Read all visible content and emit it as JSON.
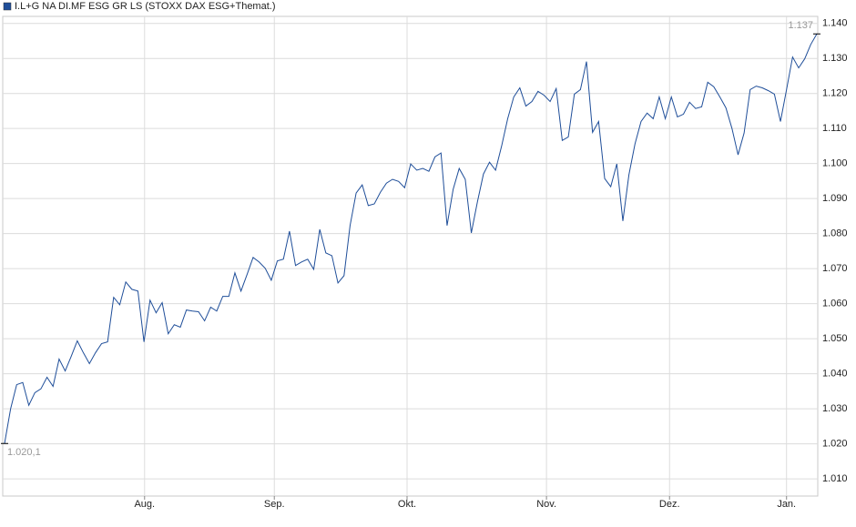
{
  "chart_data": {
    "type": "line",
    "legend": "I.L+G NA DI.MF ESG GR LS (STOXX DAX ESG+Themat.)",
    "color": "#1f4e99",
    "first_label": "1.020,1",
    "last_label": "1.137",
    "xlim": [
      0,
      134
    ],
    "xticks": [
      {
        "value": 23.1,
        "label": "Aug."
      },
      {
        "value": 44.5,
        "label": "Sep."
      },
      {
        "value": 66.4,
        "label": "Okt."
      },
      {
        "value": 89.4,
        "label": "Nov."
      },
      {
        "value": 109.7,
        "label": "Dez."
      },
      {
        "value": 129.0,
        "label": "Jan."
      }
    ],
    "ylim": [
      1005.1,
      1142.0
    ],
    "yticks": [
      {
        "value": 1010,
        "label": "1.010"
      },
      {
        "value": 1020,
        "label": "1.020"
      },
      {
        "value": 1030,
        "label": "1.030"
      },
      {
        "value": 1040,
        "label": "1.040"
      },
      {
        "value": 1050,
        "label": "1.050"
      },
      {
        "value": 1060,
        "label": "1.060"
      },
      {
        "value": 1070,
        "label": "1.070"
      },
      {
        "value": 1080,
        "label": "1.080"
      },
      {
        "value": 1090,
        "label": "1.090"
      },
      {
        "value": 1100,
        "label": "1.100"
      },
      {
        "value": 1110,
        "label": "1.110"
      },
      {
        "value": 1120,
        "label": "1.120"
      },
      {
        "value": 1130,
        "label": "1.130"
      },
      {
        "value": 1140,
        "label": "1.140"
      }
    ],
    "grid": true,
    "values": [
      1020.1,
      1030.0,
      1036.9,
      1037.5,
      1031.0,
      1034.6,
      1035.7,
      1039.0,
      1036.4,
      1044.2,
      1040.8,
      1045.0,
      1049.4,
      1046.0,
      1042.9,
      1046.0,
      1048.6,
      1049.1,
      1061.8,
      1059.7,
      1066.2,
      1064.1,
      1063.6,
      1049.1,
      1061.0,
      1057.4,
      1060.3,
      1051.4,
      1054.0,
      1053.3,
      1058.2,
      1057.9,
      1057.7,
      1055.1,
      1059.0,
      1057.9,
      1062.1,
      1062.1,
      1068.8,
      1063.6,
      1068.3,
      1073.2,
      1071.9,
      1070.1,
      1066.7,
      1072.2,
      1072.7,
      1080.7,
      1070.9,
      1071.9,
      1072.7,
      1069.8,
      1081.2,
      1074.5,
      1073.7,
      1065.9,
      1068.0,
      1082.3,
      1091.6,
      1093.9,
      1088.0,
      1088.5,
      1091.8,
      1094.4,
      1095.5,
      1094.9,
      1093.1,
      1099.9,
      1098.1,
      1098.6,
      1097.8,
      1101.9,
      1103.0,
      1082.3,
      1092.6,
      1098.6,
      1095.5,
      1080.2,
      1089.0,
      1097.0,
      1100.4,
      1098.1,
      1105.0,
      1112.8,
      1119.0,
      1121.6,
      1116.4,
      1117.7,
      1120.6,
      1119.5,
      1117.7,
      1121.4,
      1106.6,
      1107.6,
      1119.8,
      1121.1,
      1129.1,
      1108.9,
      1112.0,
      1095.7,
      1093.4,
      1099.9,
      1083.6,
      1096.8,
      1105.6,
      1112.0,
      1114.4,
      1112.8,
      1119.0,
      1112.8,
      1119.0,
      1113.3,
      1114.1,
      1117.5,
      1115.7,
      1116.2,
      1123.2,
      1121.9,
      1119.0,
      1115.9,
      1110.0,
      1102.5,
      1108.7,
      1121.1,
      1122.1,
      1121.6,
      1120.8,
      1119.8,
      1112.0,
      1121.1,
      1130.4,
      1127.3,
      1129.9,
      1134.0,
      1137
    ]
  }
}
